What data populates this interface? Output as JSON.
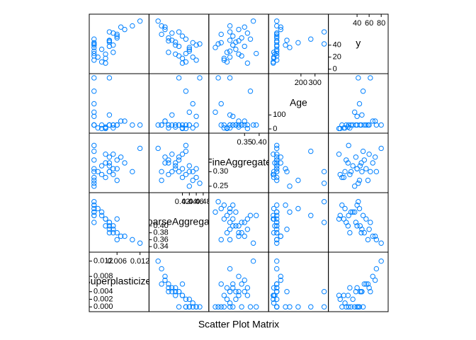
{
  "chart_data": {
    "type": "splom",
    "title": "Scatter Plot Matrix",
    "color": "#0080ff",
    "variables": [
      {
        "name": "Superplasticizer",
        "lim": [
          -0.0007,
          0.0138
        ],
        "lower_ticks": [
          {
            "value": 0,
            "label": "0.000"
          },
          {
            "value": 0.002,
            "label": "0.002"
          },
          {
            "value": 0.004,
            "label": "0.004"
          },
          {
            "value": 0.008,
            "label": "0.008"
          },
          {
            "value": 0.012,
            "label": "0.012"
          }
        ],
        "upper_ticks": [
          {
            "value": 0.006,
            "label": "0.006"
          },
          {
            "value": 0.012,
            "label": "0.012"
          }
        ]
      },
      {
        "name": "CoarseAggregate",
        "lim": [
          0.33,
          0.49
        ],
        "lower_ticks": [
          0.34,
          0.36,
          0.38,
          {
            "value": 0.4,
            "label": "0.40"
          }
        ],
        "upper_ticks": [
          0.42,
          0.44,
          0.46,
          0.48
        ]
      },
      {
        "name": "FineAggregate",
        "lim": [
          0.235,
          0.425
        ],
        "lower_ticks": [
          0.25,
          {
            "value": 0.3,
            "label": "0.30"
          }
        ],
        "upper_ticks": [
          0.35,
          {
            "value": 0.4,
            "label": "0.40"
          }
        ]
      },
      {
        "name": "Age",
        "lim": [
          -15,
          380
        ],
        "lower_ticks": [
          0,
          100
        ],
        "upper_ticks": [
          200,
          300
        ]
      },
      {
        "name": "y",
        "lim": [
          -4,
          88
        ],
        "lower_ticks": [
          0,
          20,
          40
        ],
        "upper_ticks": [
          40,
          60,
          80
        ]
      }
    ],
    "observations": [
      [
        0,
        0.44,
        0.3,
        28,
        30
      ],
      [
        0.004,
        0.4,
        0.32,
        28,
        45
      ],
      [
        0.006,
        0.38,
        0.34,
        28,
        52
      ],
      [
        0.003,
        0.42,
        0.28,
        7,
        18
      ],
      [
        0,
        0.46,
        0.31,
        90,
        40
      ],
      [
        0.005,
        0.39,
        0.36,
        28,
        60
      ],
      [
        0.002,
        0.43,
        0.29,
        3,
        12
      ],
      [
        0.008,
        0.37,
        0.33,
        56,
        66
      ],
      [
        0,
        0.45,
        0.27,
        180,
        44
      ],
      [
        0.004,
        0.41,
        0.35,
        28,
        38
      ],
      [
        0.01,
        0.36,
        0.3,
        28,
        72
      ],
      [
        0,
        0.47,
        0.26,
        365,
        42
      ],
      [
        0.003,
        0.4,
        0.33,
        14,
        25
      ],
      [
        0.006,
        0.42,
        0.31,
        28,
        55
      ],
      [
        0,
        0.43,
        0.37,
        270,
        50
      ],
      [
        0.005,
        0.38,
        0.29,
        7,
        28
      ],
      [
        0.002,
        0.44,
        0.32,
        28,
        33
      ],
      [
        0,
        0.41,
        0.34,
        28,
        22
      ],
      [
        0.007,
        0.37,
        0.35,
        56,
        70
      ],
      [
        0.004,
        0.39,
        0.3,
        100,
        48
      ],
      [
        0,
        0.46,
        0.28,
        28,
        15
      ],
      [
        0.003,
        0.42,
        0.36,
        3,
        10
      ],
      [
        0.012,
        0.35,
        0.38,
        28,
        80
      ],
      [
        0.005,
        0.4,
        0.31,
        28,
        40
      ],
      [
        0,
        0.44,
        0.25,
        120,
        36
      ],
      [
        0.004,
        0.38,
        0.33,
        28,
        47
      ],
      [
        0.001,
        0.45,
        0.3,
        7,
        20
      ],
      [
        0.006,
        0.36,
        0.27,
        28,
        58
      ],
      [
        0,
        0.43,
        0.39,
        28,
        26
      ],
      [
        0.004,
        0.41,
        0.3,
        365,
        62
      ]
    ]
  }
}
